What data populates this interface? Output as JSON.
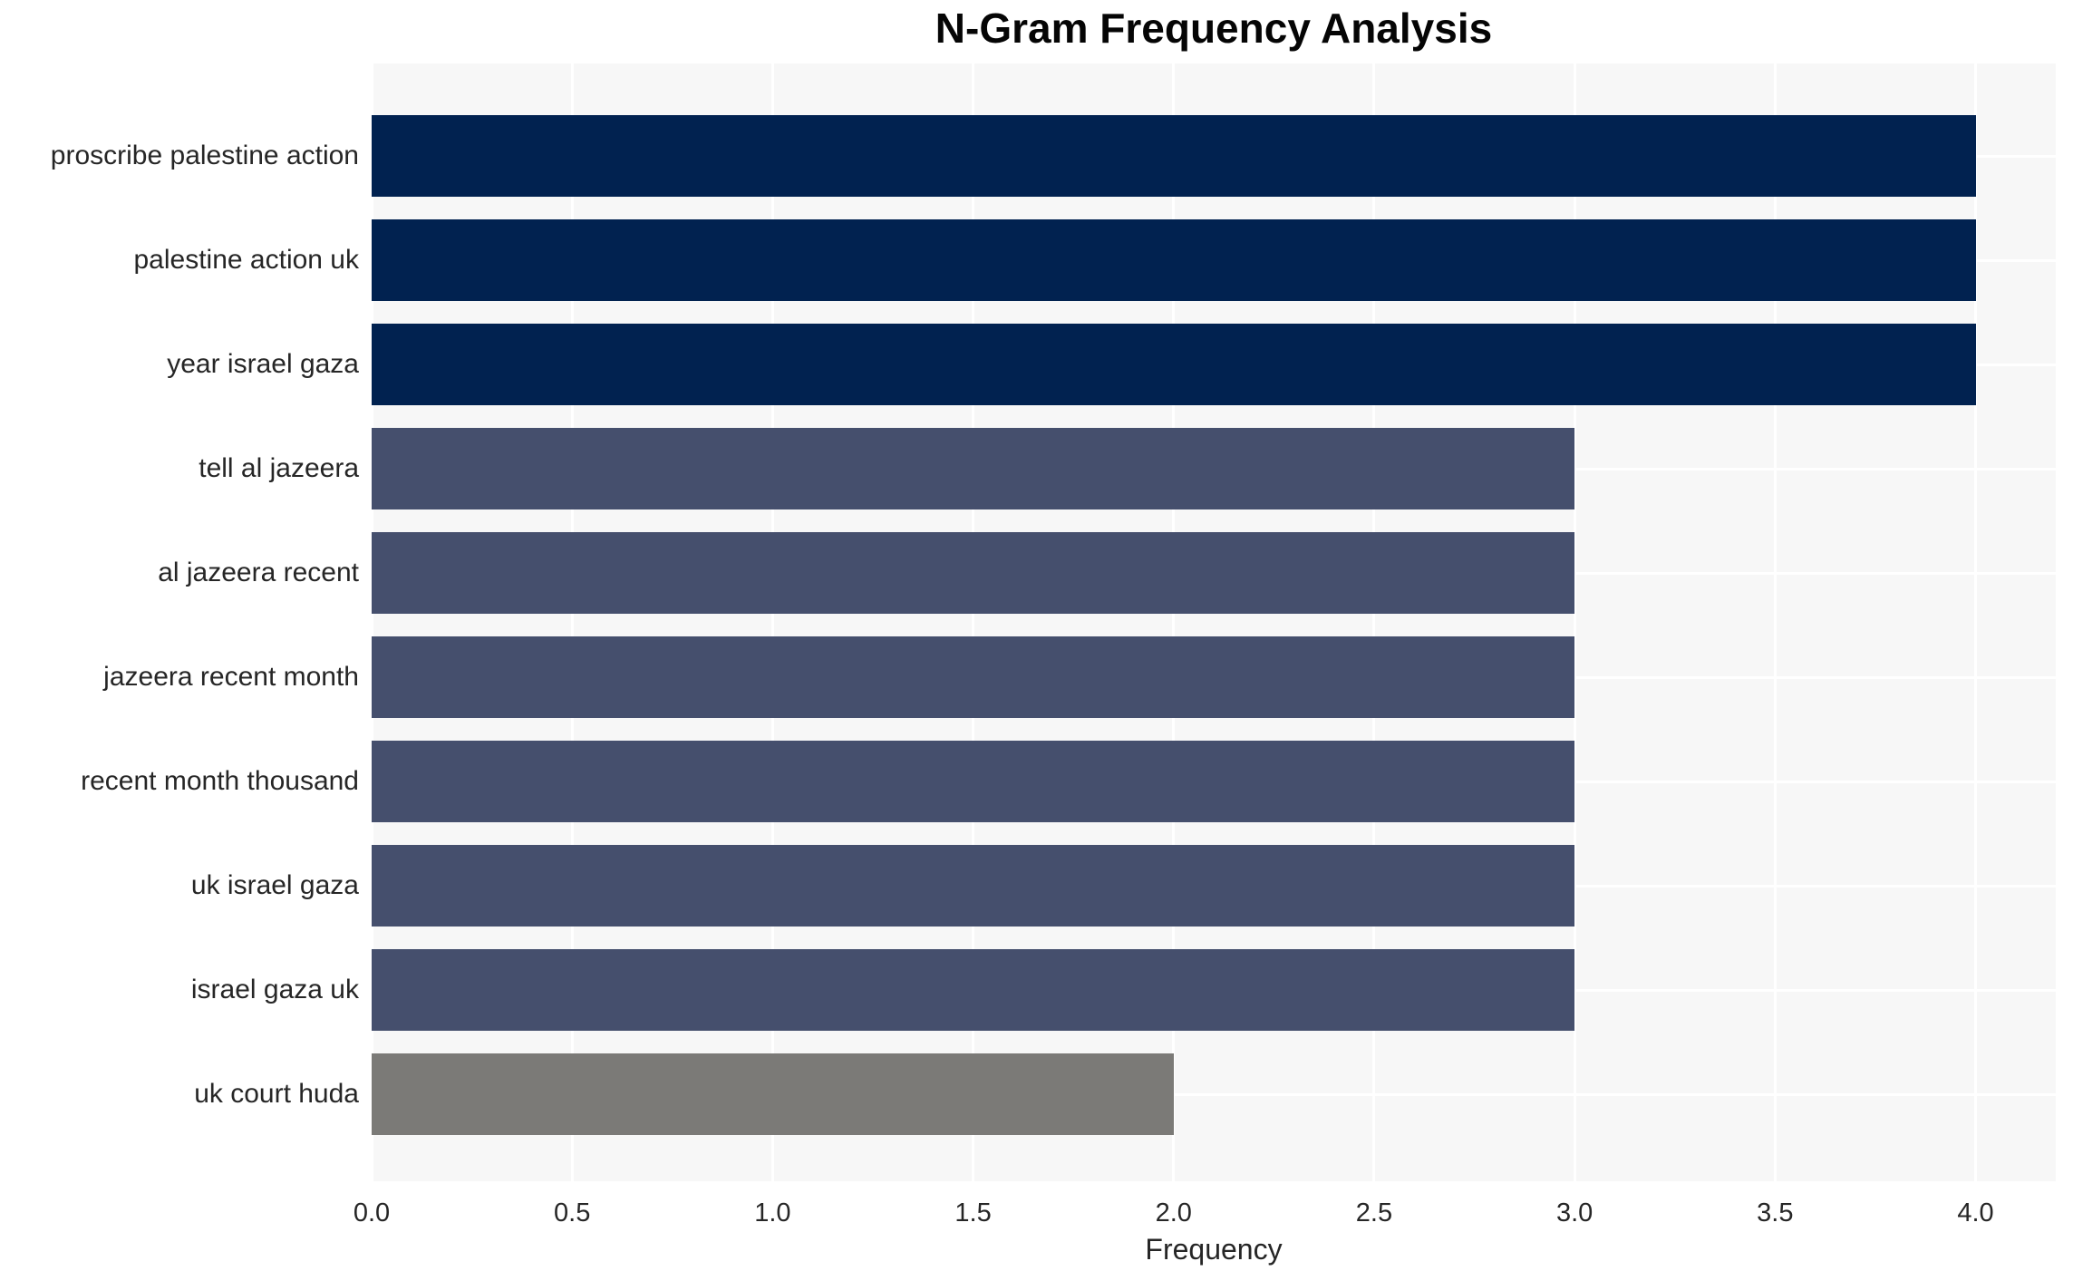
{
  "chart_data": {
    "type": "bar",
    "orientation": "horizontal",
    "title": "N-Gram Frequency Analysis",
    "xlabel": "Frequency",
    "ylabel": "",
    "categories": [
      "proscribe palestine action",
      "palestine action uk",
      "year israel gaza",
      "tell al jazeera",
      "al jazeera recent",
      "jazeera recent month",
      "recent month thousand",
      "uk israel gaza",
      "israel gaza uk",
      "uk court huda"
    ],
    "values": [
      4,
      4,
      4,
      3,
      3,
      3,
      3,
      3,
      3,
      2
    ],
    "bar_colors": [
      "#012250",
      "#012250",
      "#012250",
      "#454F6D",
      "#454F6D",
      "#454F6D",
      "#454F6D",
      "#454F6D",
      "#454F6D",
      "#7B7A77"
    ],
    "xlim": [
      0,
      4.2
    ],
    "xticks": [
      0.0,
      0.5,
      1.0,
      1.5,
      2.0,
      2.5,
      3.0,
      3.5,
      4.0
    ],
    "xtick_labels": [
      "0.0",
      "0.5",
      "1.0",
      "1.5",
      "2.0",
      "2.5",
      "3.0",
      "3.5",
      "4.0"
    ],
    "grid": true,
    "grid_color": "#FFFFFF",
    "plot_background": "#F7F7F7",
    "legend": null
  }
}
